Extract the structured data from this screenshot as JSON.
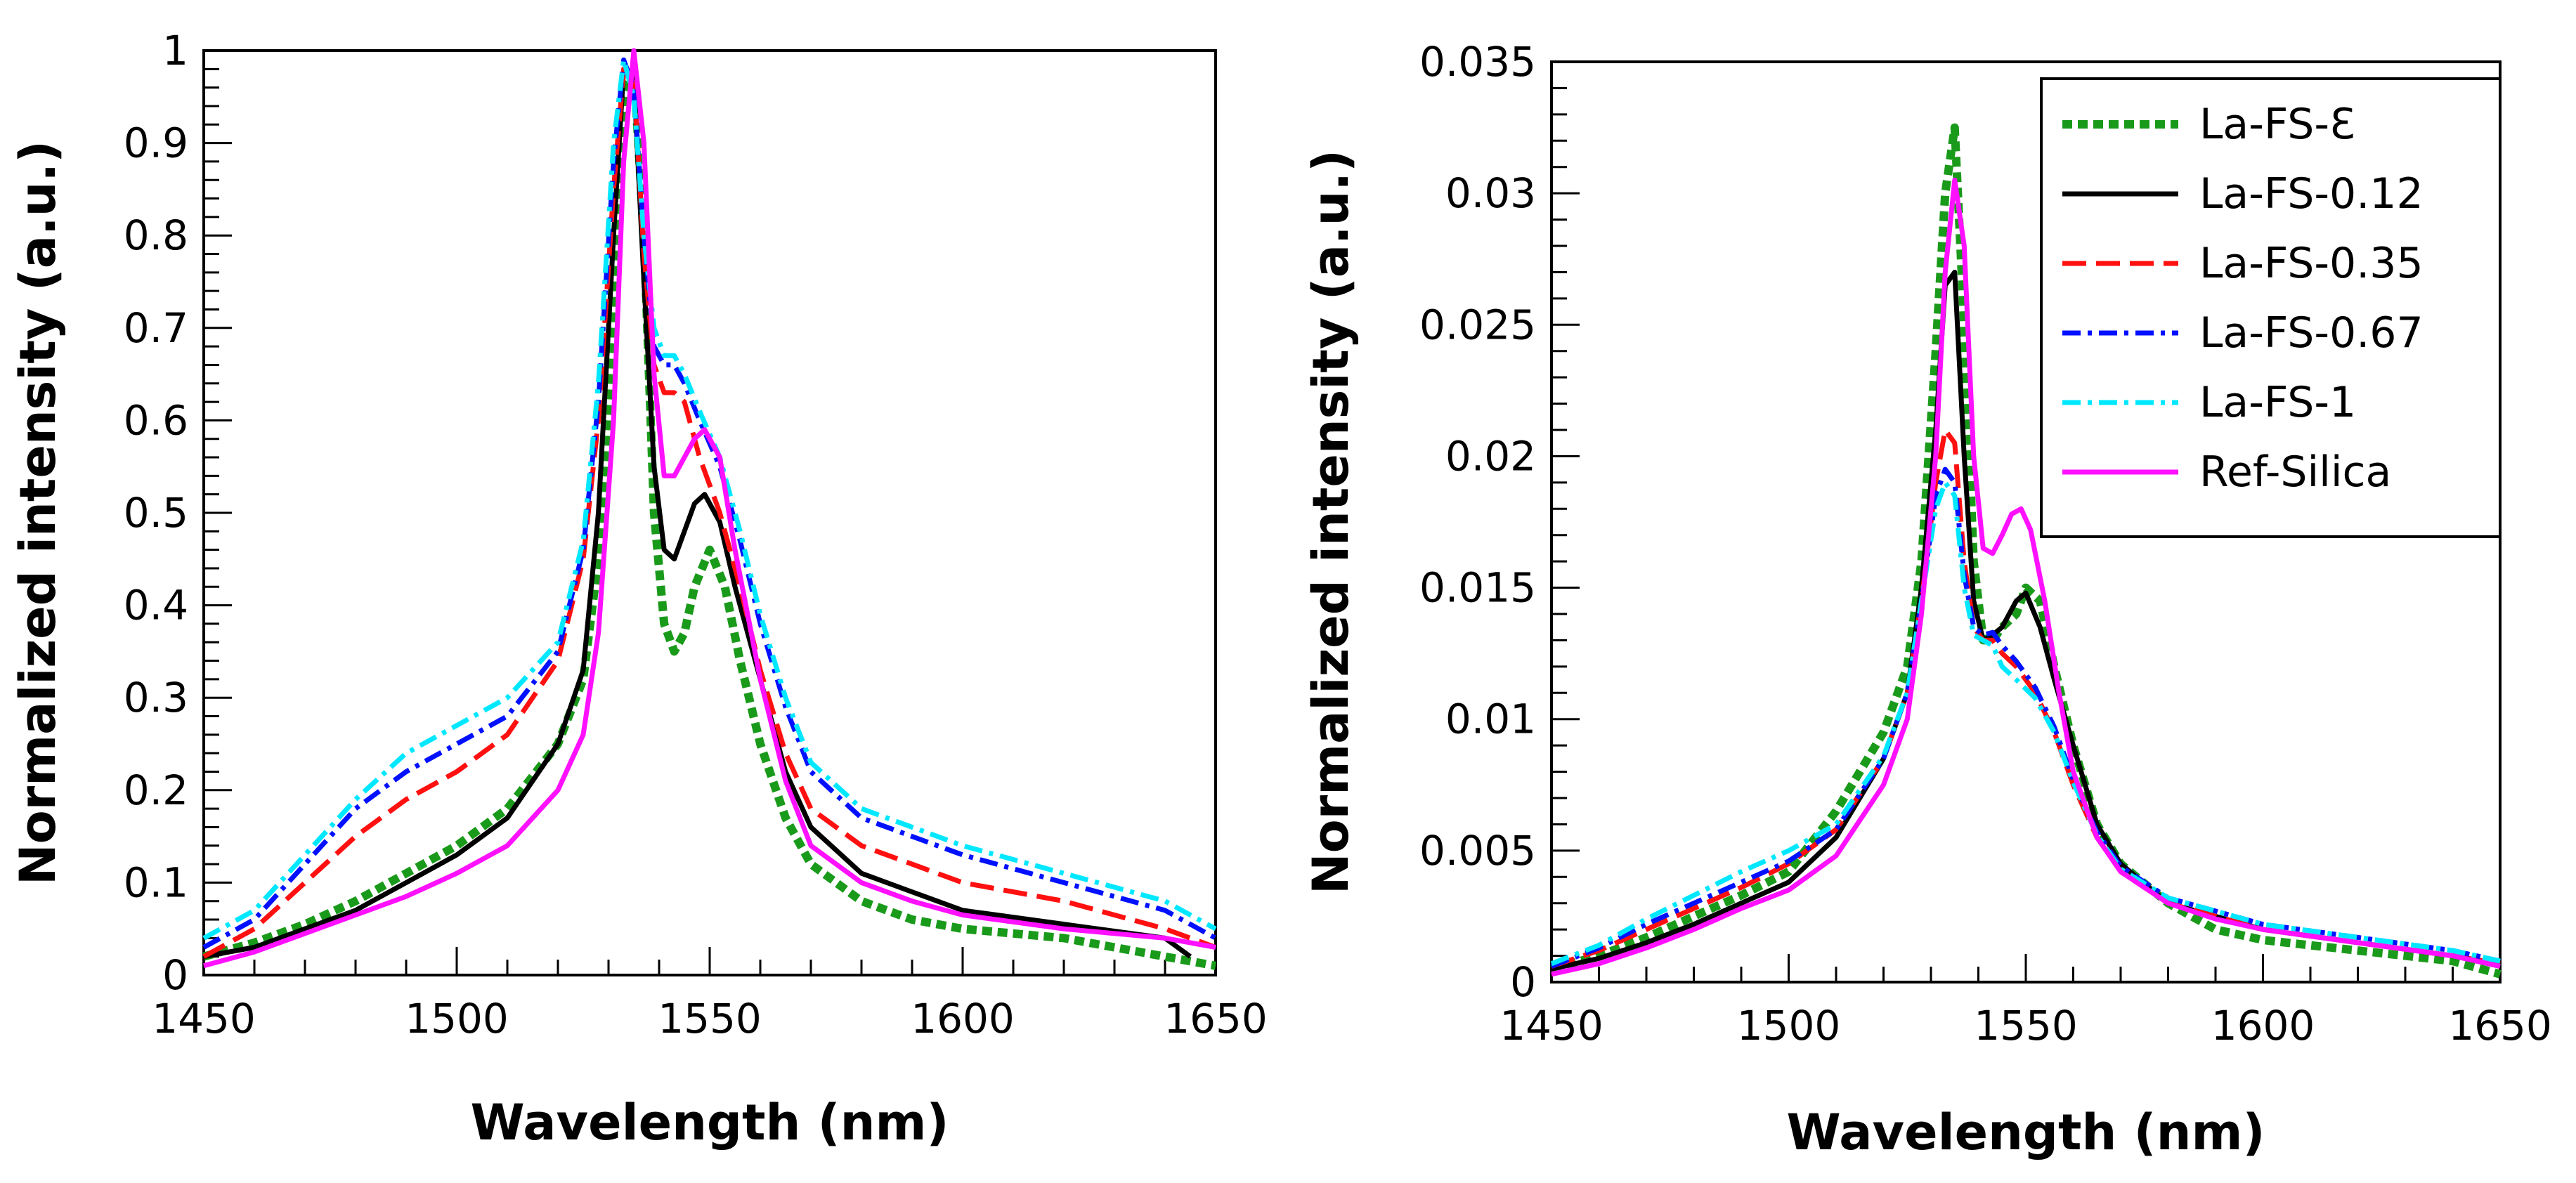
{
  "figure": {
    "panels": [
      "left",
      "right"
    ]
  },
  "chart_data": [
    {
      "type": "line",
      "title": "",
      "xlabel": "Wavelength (nm)",
      "ylabel": "Normalized intensity (a.u.)",
      "xlim": [
        1450,
        1650
      ],
      "ylim": [
        0,
        1
      ],
      "xticks": [
        1450,
        1500,
        1550,
        1600,
        1650
      ],
      "xtick_labels": [
        "1450",
        "1500",
        "1550",
        "1600",
        "1650"
      ],
      "yticks": [
        0,
        0.1,
        0.2,
        0.3,
        0.4,
        0.5,
        0.6,
        0.7,
        0.8,
        0.9,
        1
      ],
      "ytick_labels": [
        "0",
        "0.1",
        "0.2",
        "0.3",
        "0.4",
        "0.5",
        "0.6",
        "0.7",
        "0.8",
        "0.9",
        "1"
      ],
      "grid": false,
      "legend": "none",
      "series": [
        {
          "name": "La-FS-Ɛ",
          "color": "#1a9a1a",
          "style": "dotted",
          "x": [
            1450,
            1460,
            1470,
            1480,
            1490,
            1500,
            1510,
            1520,
            1525,
            1528,
            1531,
            1533,
            1535,
            1537,
            1539,
            1541,
            1543,
            1545,
            1547,
            1550,
            1553,
            1556,
            1560,
            1565,
            1570,
            1580,
            1590,
            1600,
            1620,
            1640,
            1650
          ],
          "y": [
            0.02,
            0.035,
            0.055,
            0.08,
            0.11,
            0.14,
            0.18,
            0.25,
            0.32,
            0.45,
            0.72,
            0.95,
            0.98,
            0.8,
            0.5,
            0.38,
            0.35,
            0.37,
            0.42,
            0.46,
            0.42,
            0.34,
            0.25,
            0.17,
            0.12,
            0.08,
            0.06,
            0.05,
            0.04,
            0.02,
            0.01
          ]
        },
        {
          "name": "La-FS-0.12",
          "color": "#000000",
          "style": "solid",
          "x": [
            1450,
            1460,
            1470,
            1480,
            1490,
            1500,
            1510,
            1520,
            1525,
            1528,
            1531,
            1533,
            1535,
            1537,
            1539,
            1541,
            1543,
            1545,
            1547,
            1549,
            1552,
            1555,
            1560,
            1565,
            1570,
            1580,
            1590,
            1600,
            1620,
            1640,
            1645
          ],
          "y": [
            0.02,
            0.03,
            0.05,
            0.07,
            0.1,
            0.13,
            0.17,
            0.25,
            0.33,
            0.5,
            0.8,
            0.98,
            0.97,
            0.75,
            0.55,
            0.46,
            0.45,
            0.48,
            0.51,
            0.52,
            0.49,
            0.42,
            0.32,
            0.22,
            0.16,
            0.11,
            0.09,
            0.07,
            0.055,
            0.04,
            0.02
          ]
        },
        {
          "name": "La-FS-0.35",
          "color": "#ff1010",
          "style": "dashed",
          "x": [
            1450,
            1460,
            1470,
            1480,
            1490,
            1500,
            1510,
            1520,
            1525,
            1528,
            1531,
            1533,
            1535,
            1537,
            1539,
            1541,
            1543,
            1545,
            1548,
            1552,
            1556,
            1560,
            1565,
            1570,
            1580,
            1590,
            1600,
            1620,
            1640,
            1650
          ],
          "y": [
            0.02,
            0.05,
            0.1,
            0.15,
            0.19,
            0.22,
            0.26,
            0.34,
            0.45,
            0.6,
            0.85,
            0.98,
            0.97,
            0.78,
            0.66,
            0.63,
            0.63,
            0.62,
            0.56,
            0.5,
            0.42,
            0.33,
            0.24,
            0.18,
            0.14,
            0.12,
            0.1,
            0.08,
            0.05,
            0.03
          ]
        },
        {
          "name": "La-FS-0.67",
          "color": "#0010ff",
          "style": "dashdot",
          "x": [
            1450,
            1460,
            1470,
            1480,
            1490,
            1500,
            1510,
            1520,
            1525,
            1528,
            1531,
            1533,
            1535,
            1537,
            1539,
            1541,
            1543,
            1545,
            1548,
            1552,
            1556,
            1560,
            1565,
            1570,
            1580,
            1590,
            1600,
            1620,
            1640,
            1650
          ],
          "y": [
            0.03,
            0.06,
            0.12,
            0.18,
            0.22,
            0.25,
            0.28,
            0.35,
            0.46,
            0.62,
            0.88,
            0.99,
            0.96,
            0.8,
            0.68,
            0.66,
            0.66,
            0.64,
            0.6,
            0.55,
            0.47,
            0.38,
            0.29,
            0.22,
            0.17,
            0.15,
            0.13,
            0.1,
            0.07,
            0.04
          ]
        },
        {
          "name": "La-FS-1",
          "color": "#00e8ff",
          "style": "dashdot",
          "x": [
            1450,
            1460,
            1470,
            1480,
            1490,
            1500,
            1510,
            1520,
            1525,
            1528,
            1531,
            1533,
            1535,
            1537,
            1539,
            1541,
            1543,
            1545,
            1548,
            1552,
            1556,
            1560,
            1565,
            1570,
            1580,
            1590,
            1600,
            1620,
            1640,
            1650
          ],
          "y": [
            0.04,
            0.07,
            0.13,
            0.19,
            0.24,
            0.27,
            0.3,
            0.36,
            0.47,
            0.64,
            0.9,
            0.99,
            0.95,
            0.8,
            0.7,
            0.67,
            0.67,
            0.65,
            0.61,
            0.56,
            0.48,
            0.39,
            0.3,
            0.23,
            0.18,
            0.16,
            0.14,
            0.11,
            0.08,
            0.05
          ]
        },
        {
          "name": "Ref-Silica",
          "color": "#ff10ff",
          "style": "solid",
          "x": [
            1450,
            1460,
            1470,
            1480,
            1490,
            1500,
            1510,
            1520,
            1525,
            1528,
            1531,
            1533,
            1535,
            1537,
            1539,
            1541,
            1543,
            1545,
            1547,
            1549,
            1552,
            1555,
            1560,
            1565,
            1570,
            1580,
            1590,
            1600,
            1620,
            1640,
            1650
          ],
          "y": [
            0.01,
            0.025,
            0.045,
            0.065,
            0.085,
            0.11,
            0.14,
            0.2,
            0.26,
            0.37,
            0.6,
            0.88,
            1.0,
            0.9,
            0.65,
            0.54,
            0.54,
            0.56,
            0.58,
            0.59,
            0.56,
            0.46,
            0.32,
            0.21,
            0.14,
            0.1,
            0.08,
            0.065,
            0.05,
            0.04,
            0.03
          ]
        }
      ]
    },
    {
      "type": "line",
      "title": "",
      "xlabel": "Wavelength (nm)",
      "ylabel": "Normalized intensity (a.u.)",
      "xlim": [
        1450,
        1650
      ],
      "ylim": [
        0,
        0.035
      ],
      "xticks": [
        1450,
        1500,
        1550,
        1600,
        1650
      ],
      "xtick_labels": [
        "1450",
        "1500",
        "1550",
        "1600",
        "1650"
      ],
      "yticks": [
        0,
        0.005,
        0.01,
        0.015,
        0.02,
        0.025,
        0.03,
        0.035
      ],
      "ytick_labels": [
        "0",
        "0.005",
        "0.01",
        "0.015",
        "0.02",
        "0.025",
        "0.03",
        "0.035"
      ],
      "grid": false,
      "legend": "top-right",
      "series": [
        {
          "name": "La-FS-Ɛ",
          "color": "#1a9a1a",
          "style": "dotted",
          "x": [
            1450,
            1460,
            1470,
            1480,
            1490,
            1500,
            1510,
            1515,
            1520,
            1525,
            1528,
            1531,
            1533,
            1535,
            1537,
            1539,
            1541,
            1543,
            1545,
            1548,
            1550,
            1553,
            1556,
            1560,
            1565,
            1570,
            1580,
            1590,
            1600,
            1620,
            1640,
            1650
          ],
          "y": [
            0.0005,
            0.001,
            0.0017,
            0.0025,
            0.0033,
            0.0042,
            0.0065,
            0.008,
            0.0095,
            0.012,
            0.016,
            0.024,
            0.03,
            0.0325,
            0.025,
            0.016,
            0.013,
            0.013,
            0.0135,
            0.014,
            0.015,
            0.0145,
            0.012,
            0.009,
            0.006,
            0.0045,
            0.003,
            0.002,
            0.0016,
            0.0012,
            0.0008,
            0.0003
          ]
        },
        {
          "name": "La-FS-0.12",
          "color": "#000000",
          "style": "solid",
          "x": [
            1450,
            1460,
            1470,
            1480,
            1490,
            1500,
            1510,
            1520,
            1525,
            1528,
            1531,
            1533,
            1535,
            1537,
            1539,
            1541,
            1543,
            1545,
            1548,
            1550,
            1553,
            1556,
            1560,
            1565,
            1570,
            1580,
            1590,
            1600,
            1620,
            1640,
            1650
          ],
          "y": [
            0.0005,
            0.0009,
            0.0015,
            0.0022,
            0.003,
            0.0038,
            0.0055,
            0.0085,
            0.011,
            0.015,
            0.021,
            0.0265,
            0.027,
            0.02,
            0.0145,
            0.013,
            0.0132,
            0.0135,
            0.0145,
            0.0148,
            0.0135,
            0.0115,
            0.009,
            0.006,
            0.0045,
            0.003,
            0.0025,
            0.002,
            0.0015,
            0.001,
            0.0006
          ]
        },
        {
          "name": "La-FS-0.35",
          "color": "#ff1010",
          "style": "dashed",
          "x": [
            1450,
            1460,
            1470,
            1480,
            1490,
            1500,
            1510,
            1520,
            1525,
            1528,
            1531,
            1533,
            1535,
            1537,
            1539,
            1541,
            1543,
            1545,
            1548,
            1552,
            1556,
            1560,
            1565,
            1570,
            1580,
            1590,
            1600,
            1620,
            1640,
            1650
          ],
          "y": [
            0.0006,
            0.0012,
            0.002,
            0.0028,
            0.0036,
            0.0045,
            0.0058,
            0.0085,
            0.011,
            0.0145,
            0.019,
            0.021,
            0.0205,
            0.016,
            0.0135,
            0.013,
            0.013,
            0.0125,
            0.012,
            0.011,
            0.0095,
            0.0075,
            0.0055,
            0.0042,
            0.003,
            0.0025,
            0.002,
            0.0015,
            0.001,
            0.0007
          ]
        },
        {
          "name": "La-FS-0.67",
          "color": "#0010ff",
          "style": "dashdot",
          "x": [
            1450,
            1460,
            1470,
            1480,
            1490,
            1500,
            1510,
            1520,
            1525,
            1528,
            1531,
            1533,
            1535,
            1537,
            1539,
            1541,
            1543,
            1545,
            1548,
            1552,
            1556,
            1560,
            1565,
            1570,
            1580,
            1590,
            1600,
            1620,
            1640,
            1650
          ],
          "y": [
            0.0006,
            0.0013,
            0.0022,
            0.003,
            0.0038,
            0.0046,
            0.0058,
            0.0085,
            0.011,
            0.0145,
            0.0185,
            0.0195,
            0.019,
            0.0155,
            0.0135,
            0.0132,
            0.0133,
            0.0128,
            0.0122,
            0.0112,
            0.0097,
            0.0077,
            0.0057,
            0.0044,
            0.0032,
            0.0027,
            0.0022,
            0.0017,
            0.0012,
            0.0008
          ]
        },
        {
          "name": "La-FS-1",
          "color": "#00e8ff",
          "style": "dashdot",
          "x": [
            1450,
            1460,
            1470,
            1480,
            1490,
            1500,
            1510,
            1520,
            1525,
            1528,
            1531,
            1533,
            1535,
            1537,
            1539,
            1541,
            1543,
            1545,
            1548,
            1552,
            1556,
            1560,
            1565,
            1570,
            1580,
            1590,
            1600,
            1620,
            1640,
            1650
          ],
          "y": [
            0.0007,
            0.0014,
            0.0024,
            0.0033,
            0.0042,
            0.005,
            0.006,
            0.0086,
            0.011,
            0.0145,
            0.018,
            0.019,
            0.0185,
            0.015,
            0.0132,
            0.013,
            0.0128,
            0.012,
            0.0115,
            0.0108,
            0.0095,
            0.0076,
            0.0056,
            0.0043,
            0.0032,
            0.0027,
            0.0022,
            0.0017,
            0.0012,
            0.0008
          ]
        },
        {
          "name": "Ref-Silica",
          "color": "#ff10ff",
          "style": "solid",
          "x": [
            1450,
            1460,
            1470,
            1480,
            1490,
            1500,
            1510,
            1520,
            1525,
            1528,
            1531,
            1533,
            1535,
            1537,
            1539,
            1541,
            1543,
            1545,
            1547,
            1549,
            1551,
            1554,
            1557,
            1560,
            1565,
            1570,
            1580,
            1590,
            1600,
            1620,
            1640,
            1650
          ],
          "y": [
            0.0003,
            0.0007,
            0.0013,
            0.002,
            0.0028,
            0.0035,
            0.0048,
            0.0075,
            0.01,
            0.014,
            0.02,
            0.027,
            0.0305,
            0.028,
            0.02,
            0.0165,
            0.0163,
            0.017,
            0.0178,
            0.018,
            0.0172,
            0.0145,
            0.011,
            0.008,
            0.0055,
            0.0042,
            0.003,
            0.0024,
            0.002,
            0.0015,
            0.001,
            0.0006
          ]
        }
      ]
    }
  ]
}
